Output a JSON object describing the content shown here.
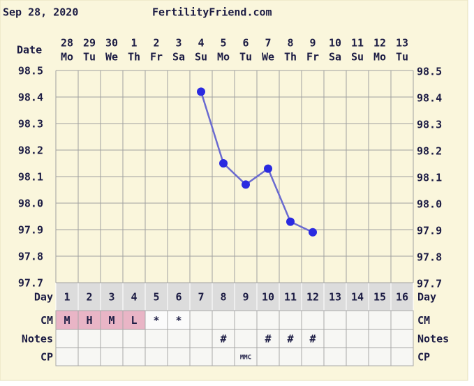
{
  "chart_data": {
    "type": "line",
    "date": "Sep 28, 2020",
    "title": "FertilityFriend.com",
    "categories": [
      "28",
      "29",
      "30",
      "1",
      "2",
      "3",
      "4",
      "5",
      "6",
      "7",
      "8",
      "9",
      "10",
      "11",
      "12",
      "13"
    ],
    "weekdays": [
      "Mo",
      "Tu",
      "We",
      "Th",
      "Fr",
      "Sa",
      "Su",
      "Mo",
      "Tu",
      "We",
      "Th",
      "Fr",
      "Sa",
      "Su",
      "Mo",
      "Tu"
    ],
    "cycle_days": [
      1,
      2,
      3,
      4,
      5,
      6,
      7,
      8,
      9,
      10,
      11,
      12,
      13,
      14,
      15,
      16
    ],
    "row_labels": {
      "date": "Date",
      "day": "Day",
      "cm": "CM",
      "notes": "Notes",
      "cp": "CP"
    },
    "series": [
      {
        "color": "#6a6ad0",
        "marker_color": "#2a2ae0",
        "values": [
          null,
          null,
          null,
          null,
          null,
          null,
          98.42,
          98.15,
          98.07,
          98.13,
          97.93,
          97.89,
          null,
          null,
          null,
          null
        ]
      }
    ],
    "cm": [
      "M",
      "H",
      "M",
      "L",
      "*",
      "*",
      null,
      null,
      null,
      null,
      null,
      null,
      null,
      null,
      null,
      null
    ],
    "notes": [
      null,
      null,
      null,
      null,
      null,
      null,
      null,
      "#",
      null,
      "#",
      "#",
      "#",
      null,
      null,
      null,
      null
    ],
    "cp": [
      null,
      null,
      null,
      null,
      null,
      null,
      null,
      null,
      "MMC",
      null,
      null,
      null,
      null,
      null,
      null,
      null
    ],
    "flow_color": "#e9b5c6",
    "ylim": [
      97.7,
      98.5
    ],
    "yticks": [
      97.7,
      97.8,
      97.9,
      {
        "value": 98.0,
        "label": "98.0"
      },
      98.1,
      98.2,
      98.3,
      98.4,
      98.5
    ],
    "grid": true
  }
}
